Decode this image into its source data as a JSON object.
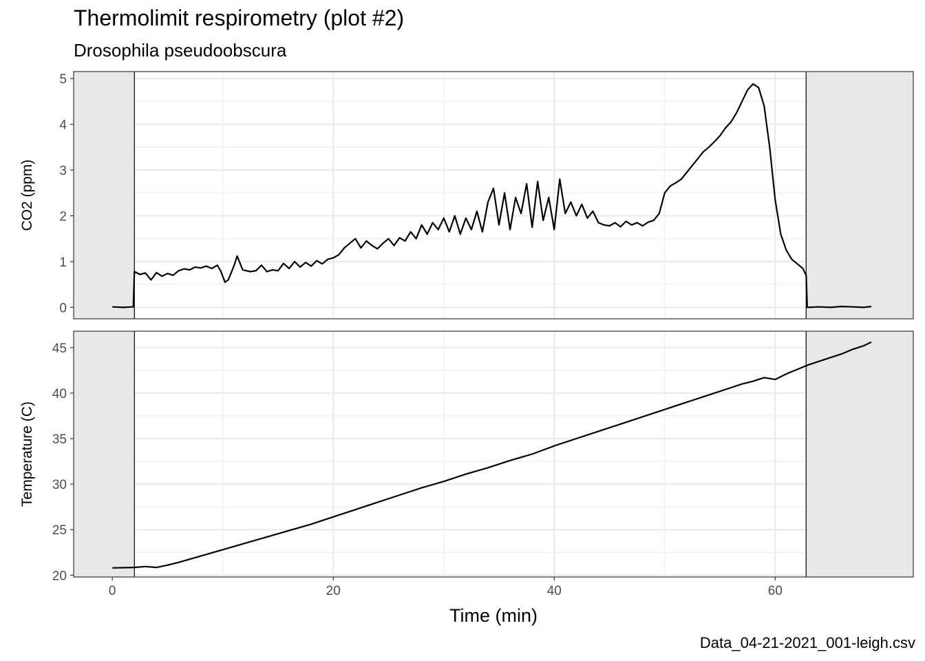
{
  "title": "Thermolimit respirometry (plot #2)",
  "subtitle": "Drosophila pseudoobscura",
  "caption": "Data_04-21-2021_001-leigh.csv",
  "chart_data": {
    "type": "line",
    "xlabel": "Time (min)",
    "xlim": [
      -3.5,
      72.5
    ],
    "x_ticks": [
      0,
      20,
      40,
      60
    ],
    "recording_window": [
      2.0,
      62.8
    ],
    "colors": {
      "line": "#000000",
      "shade": "#e8e8e8",
      "grid": "#ebebeb"
    },
    "panels": [
      {
        "name": "co2",
        "ylabel": "CO2 (ppm)",
        "ylim": [
          -0.25,
          5.15
        ],
        "y_ticks": [
          0,
          1,
          2,
          3,
          4,
          5
        ],
        "series": [
          {
            "x": [
              0.0,
              1.0,
              1.9,
              2.0,
              2.5,
              3.0,
              3.5,
              4.0,
              4.5,
              5.0,
              5.5,
              6.0,
              6.5,
              7.0,
              7.5,
              8.0,
              8.5,
              9.0,
              9.5,
              9.8,
              10.2,
              10.5,
              11.0,
              11.3,
              11.8,
              12.5,
              13.0,
              13.5,
              14.0,
              14.5,
              15.0,
              15.5,
              16.0,
              16.5,
              17.0,
              17.5,
              18.0,
              18.5,
              19.0,
              19.5,
              20.0,
              20.5,
              21.0,
              21.5,
              22.0,
              22.5,
              23.0,
              23.5,
              24.0,
              24.5,
              25.0,
              25.5,
              26.0,
              26.5,
              27.0,
              27.5,
              28.0,
              28.5,
              29.0,
              29.5,
              30.0,
              30.5,
              31.0,
              31.5,
              32.0,
              32.5,
              33.0,
              33.5,
              34.0,
              34.5,
              35.0,
              35.5,
              36.0,
              36.5,
              37.0,
              37.5,
              38.0,
              38.5,
              39.0,
              39.5,
              40.0,
              40.5,
              41.0,
              41.5,
              42.0,
              42.5,
              43.0,
              43.5,
              44.0,
              44.5,
              45.0,
              45.5,
              46.0,
              46.5,
              47.0,
              47.5,
              48.0,
              48.5,
              49.0,
              49.5,
              50.0,
              50.5,
              51.0,
              51.5,
              52.0,
              52.5,
              53.0,
              53.5,
              54.0,
              54.5,
              55.0,
              55.5,
              56.0,
              56.5,
              57.0,
              57.5,
              58.0,
              58.5,
              59.0,
              59.5,
              60.0,
              60.5,
              61.0,
              61.5,
              62.0,
              62.5,
              62.8,
              62.9,
              64.0,
              65.0,
              66.0,
              67.0,
              68.0,
              68.7
            ],
            "y": [
              0.01,
              0.0,
              0.01,
              0.78,
              0.72,
              0.75,
              0.6,
              0.76,
              0.68,
              0.74,
              0.7,
              0.8,
              0.84,
              0.82,
              0.88,
              0.86,
              0.9,
              0.85,
              0.92,
              0.8,
              0.55,
              0.6,
              0.9,
              1.12,
              0.82,
              0.78,
              0.8,
              0.92,
              0.78,
              0.82,
              0.8,
              0.96,
              0.85,
              1.0,
              0.88,
              0.98,
              0.9,
              1.02,
              0.95,
              1.05,
              1.08,
              1.15,
              1.3,
              1.4,
              1.5,
              1.3,
              1.45,
              1.35,
              1.28,
              1.4,
              1.5,
              1.35,
              1.52,
              1.45,
              1.65,
              1.5,
              1.8,
              1.6,
              1.85,
              1.7,
              1.95,
              1.65,
              2.0,
              1.6,
              1.95,
              1.7,
              2.1,
              1.65,
              2.3,
              2.6,
              1.8,
              2.5,
              1.7,
              2.4,
              2.05,
              2.7,
              1.75,
              2.75,
              1.9,
              2.4,
              1.7,
              2.8,
              2.05,
              2.3,
              2.0,
              2.25,
              1.95,
              2.1,
              1.85,
              1.8,
              1.78,
              1.85,
              1.76,
              1.88,
              1.8,
              1.85,
              1.78,
              1.86,
              1.9,
              2.05,
              2.5,
              2.65,
              2.72,
              2.8,
              2.95,
              3.1,
              3.25,
              3.4,
              3.5,
              3.62,
              3.75,
              3.92,
              4.05,
              4.25,
              4.5,
              4.75,
              4.88,
              4.8,
              4.4,
              3.5,
              2.35,
              1.6,
              1.25,
              1.05,
              0.95,
              0.85,
              0.7,
              0.0,
              0.01,
              0.0,
              0.02,
              0.01,
              0.0,
              0.02
            ]
          }
        ]
      },
      {
        "name": "temperature",
        "ylabel": "Temperature (C)",
        "ylim": [
          19.8,
          46.8
        ],
        "y_ticks": [
          20,
          25,
          30,
          35,
          40,
          45
        ],
        "series": [
          {
            "x": [
              0.0,
              2.0,
              3.0,
              4.0,
              5.0,
              6.0,
              8.0,
              10.0,
              12.0,
              14.0,
              16.0,
              18.0,
              20.0,
              22.0,
              24.0,
              26.0,
              28.0,
              30.0,
              32.0,
              34.0,
              36.0,
              38.0,
              40.0,
              42.0,
              44.0,
              46.0,
              48.0,
              50.0,
              52.0,
              54.0,
              56.0,
              57.0,
              58.0,
              59.0,
              60.0,
              61.0,
              62.0,
              63.0,
              64.0,
              65.0,
              66.0,
              67.0,
              68.0,
              68.7
            ],
            "y": [
              20.8,
              20.85,
              20.95,
              20.85,
              21.1,
              21.4,
              22.1,
              22.8,
              23.5,
              24.2,
              24.9,
              25.6,
              26.4,
              27.2,
              28.0,
              28.8,
              29.6,
              30.3,
              31.1,
              31.8,
              32.6,
              33.3,
              34.2,
              35.0,
              35.8,
              36.6,
              37.4,
              38.2,
              39.0,
              39.8,
              40.6,
              41.0,
              41.3,
              41.7,
              41.5,
              42.1,
              42.6,
              43.1,
              43.5,
              43.9,
              44.3,
              44.8,
              45.2,
              45.6
            ]
          }
        ]
      }
    ]
  }
}
